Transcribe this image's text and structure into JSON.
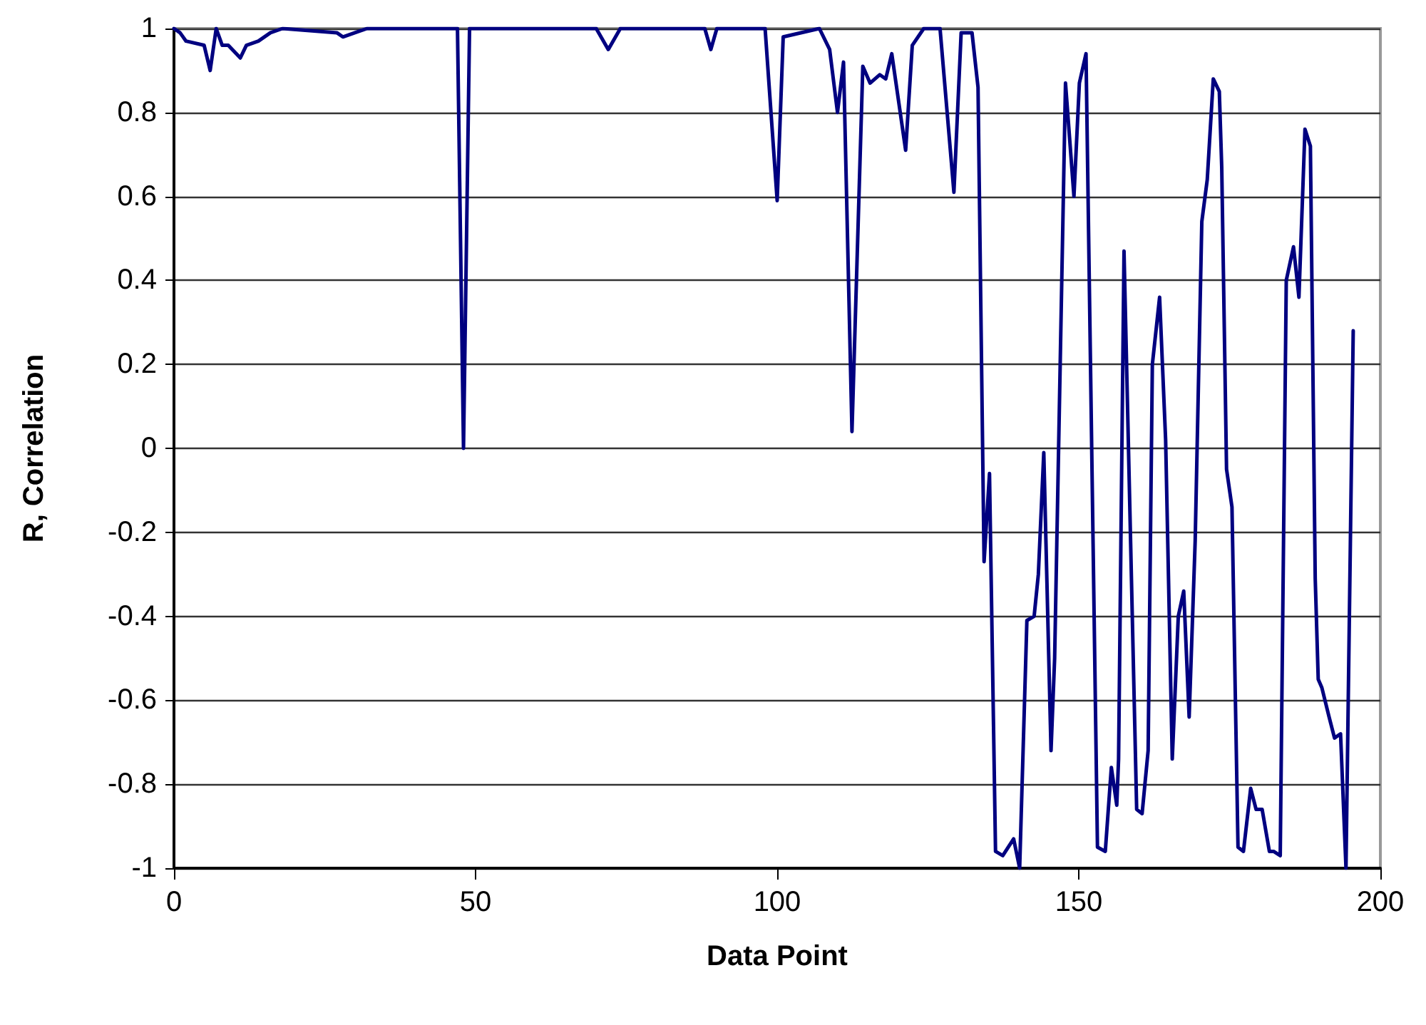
{
  "chart_data": {
    "type": "line",
    "xlabel": "Data Point",
    "ylabel": "R, Correlation",
    "xlim": [
      0,
      200
    ],
    "xticks": [
      0,
      50,
      100,
      150,
      200
    ],
    "ylim": [
      -1,
      1
    ],
    "yticks": [
      -1,
      -0.8,
      -0.6,
      -0.4,
      -0.2,
      0,
      0.2,
      0.4,
      0.6,
      0.8,
      1
    ],
    "grid": "y",
    "marker": "none",
    "line_style": "solid",
    "series": [
      {
        "color": "#000080",
        "x": [
          0,
          1,
          2,
          5,
          6,
          7,
          8,
          9,
          11,
          12,
          14,
          16,
          18,
          27,
          28,
          30,
          32,
          47,
          48,
          49,
          70,
          72,
          74,
          88,
          89,
          90,
          98,
          100,
          101,
          107,
          108.7,
          110,
          111,
          112.4,
          114.2,
          115.4,
          117,
          118,
          119,
          121.3,
          122.4,
          124.3,
          127,
          129.3,
          130.5,
          132.3,
          133.3,
          134.3,
          135.2,
          136.2,
          137.4,
          139.2,
          140.2,
          141.4,
          142.6,
          143.3,
          144.2,
          145.4,
          146,
          147.8,
          149.2,
          150.1,
          151.2,
          153.1,
          154.4,
          155.4,
          156.3,
          156.6,
          157.5,
          159.6,
          160.5,
          161.5,
          162.2,
          163.4,
          164.4,
          165.5,
          166.5,
          167.4,
          168.3,
          169.3,
          170.4,
          171.3,
          172.3,
          173.3,
          173.7,
          174.5,
          175.4,
          176.4,
          177.3,
          178.5,
          179.4,
          180.4,
          181.6,
          182.3,
          183.4,
          184.4,
          185.6,
          186.5,
          187.5,
          188.4,
          189.2,
          189.7,
          190.3,
          191.5,
          192.4,
          193.4,
          194.3,
          195.5
        ],
        "values": [
          1,
          0.99,
          0.97,
          0.96,
          0.9,
          1,
          0.96,
          0.96,
          0.93,
          0.96,
          0.97,
          0.99,
          1,
          0.99,
          0.98,
          0.99,
          1,
          1,
          0,
          1,
          1,
          0.95,
          1,
          1,
          0.95,
          1,
          1,
          0.59,
          0.98,
          1,
          0.95,
          0.8,
          0.92,
          0.04,
          0.91,
          0.87,
          0.89,
          0.88,
          0.94,
          0.71,
          0.96,
          1,
          1,
          0.61,
          0.99,
          0.99,
          0.86,
          -0.27,
          -0.06,
          -0.96,
          -0.97,
          -0.93,
          -1,
          -0.41,
          -0.4,
          -0.3,
          -0.01,
          -0.72,
          -0.5,
          0.87,
          0.6,
          0.87,
          0.94,
          -0.95,
          -0.96,
          -0.76,
          -0.85,
          -0.74,
          0.47,
          -0.86,
          -0.87,
          -0.72,
          0.2,
          0.36,
          0.02,
          -0.74,
          -0.4,
          -0.34,
          -0.64,
          -0.22,
          0.54,
          0.64,
          0.88,
          0.85,
          0.67,
          -0.05,
          -0.14,
          -0.95,
          -0.96,
          -0.81,
          -0.86,
          -0.86,
          -0.96,
          -0.96,
          -0.97,
          0.4,
          0.48,
          0.36,
          0.76,
          0.72,
          -0.31,
          -0.55,
          -0.57,
          -0.64,
          -0.69,
          -0.68,
          -1,
          0.28
        ]
      }
    ]
  }
}
